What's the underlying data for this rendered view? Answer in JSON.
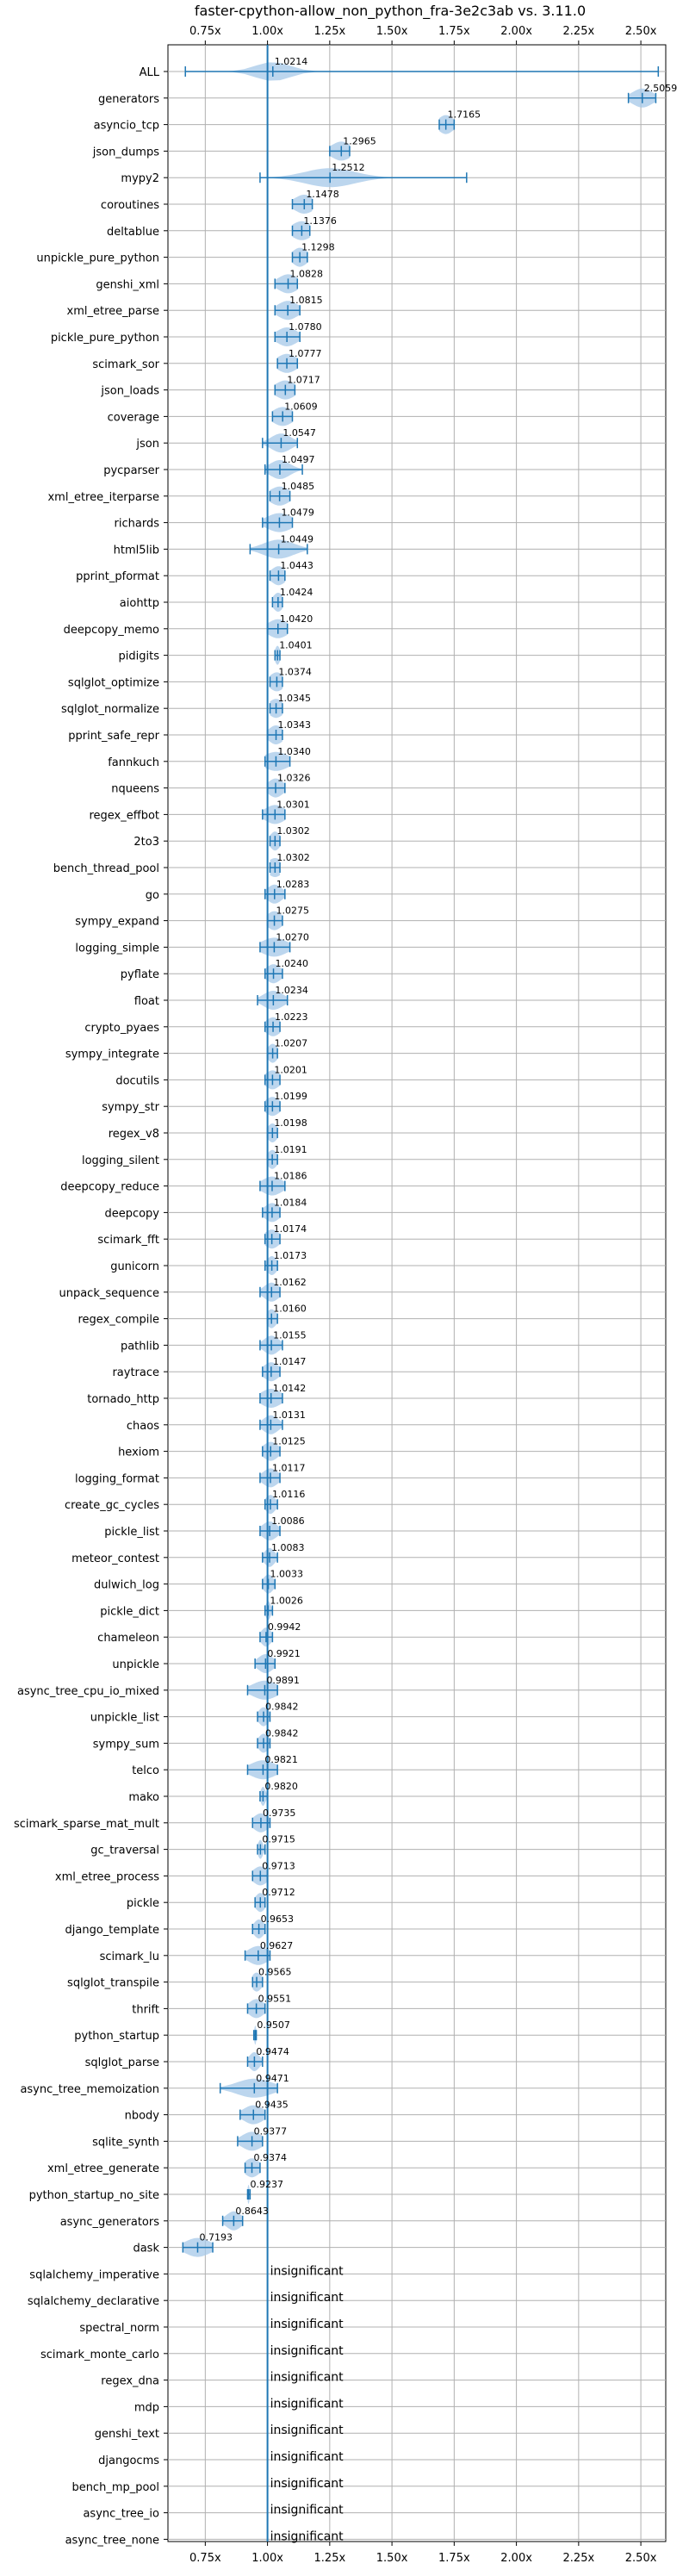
{
  "chart_data": {
    "type": "violin",
    "title": "faster-cpython-allow_non_python_fra-3e2c3ab vs. 3.11.0",
    "xlim": [
      0.6,
      2.6
    ],
    "xticks": [
      0.75,
      1.0,
      1.25,
      1.5,
      1.75,
      2.0,
      2.25,
      2.5
    ],
    "xtick_labels": [
      "0.75x",
      "1.00x",
      "1.25x",
      "1.50x",
      "1.75x",
      "2.00x",
      "2.25x",
      "2.50x"
    ],
    "reference_line": 1.0,
    "grid": true,
    "colors": {
      "violin": "#a6c8e8",
      "line": "#1f77b4",
      "grid": "#b0b0b0"
    },
    "insignificant_text": "insignificant",
    "benchmarks": [
      {
        "name": "ALL",
        "value": 1.0214,
        "label": "1.0214",
        "min": 0.67,
        "max": 2.57,
        "spread": 0.07
      },
      {
        "name": "generators",
        "value": 2.5059,
        "label": "2.5059",
        "min": 2.45,
        "max": 2.56,
        "spread": 0.04
      },
      {
        "name": "asyncio_tcp",
        "value": 1.7165,
        "label": "1.7165",
        "min": 1.69,
        "max": 1.75,
        "spread": 0.03
      },
      {
        "name": "json_dumps",
        "value": 1.2965,
        "label": "1.2965",
        "min": 1.25,
        "max": 1.33,
        "spread": 0.04
      },
      {
        "name": "mypy2",
        "value": 1.2512,
        "label": "1.2512",
        "min": 0.97,
        "max": 1.8,
        "spread": 0.1
      },
      {
        "name": "coroutines",
        "value": 1.1478,
        "label": "1.1478",
        "min": 1.1,
        "max": 1.18,
        "spread": 0.04
      },
      {
        "name": "deltablue",
        "value": 1.1376,
        "label": "1.1376",
        "min": 1.1,
        "max": 1.17,
        "spread": 0.04
      },
      {
        "name": "unpickle_pure_python",
        "value": 1.1298,
        "label": "1.1298",
        "min": 1.1,
        "max": 1.16,
        "spread": 0.03
      },
      {
        "name": "genshi_xml",
        "value": 1.0828,
        "label": "1.0828",
        "min": 1.03,
        "max": 1.12,
        "spread": 0.04
      },
      {
        "name": "xml_etree_parse",
        "value": 1.0815,
        "label": "1.0815",
        "min": 1.03,
        "max": 1.13,
        "spread": 0.04
      },
      {
        "name": "pickle_pure_python",
        "value": 1.078,
        "label": "1.0780",
        "min": 1.03,
        "max": 1.13,
        "spread": 0.04
      },
      {
        "name": "scimark_sor",
        "value": 1.0777,
        "label": "1.0777",
        "min": 1.04,
        "max": 1.12,
        "spread": 0.04
      },
      {
        "name": "json_loads",
        "value": 1.0717,
        "label": "1.0717",
        "min": 1.03,
        "max": 1.11,
        "spread": 0.04
      },
      {
        "name": "coverage",
        "value": 1.0609,
        "label": "1.0609",
        "min": 1.02,
        "max": 1.1,
        "spread": 0.04
      },
      {
        "name": "json",
        "value": 1.0547,
        "label": "1.0547",
        "min": 0.98,
        "max": 1.12,
        "spread": 0.04
      },
      {
        "name": "pycparser",
        "value": 1.0497,
        "label": "1.0497",
        "min": 0.99,
        "max": 1.14,
        "spread": 0.04
      },
      {
        "name": "xml_etree_iterparse",
        "value": 1.0485,
        "label": "1.0485",
        "min": 1.01,
        "max": 1.09,
        "spread": 0.04
      },
      {
        "name": "richards",
        "value": 1.0479,
        "label": "1.0479",
        "min": 0.98,
        "max": 1.1,
        "spread": 0.05
      },
      {
        "name": "html5lib",
        "value": 1.0449,
        "label": "1.0449",
        "min": 0.93,
        "max": 1.16,
        "spread": 0.06
      },
      {
        "name": "pprint_pformat",
        "value": 1.0443,
        "label": "1.0443",
        "min": 1.01,
        "max": 1.07,
        "spread": 0.03
      },
      {
        "name": "aiohttp",
        "value": 1.0424,
        "label": "1.0424",
        "min": 1.02,
        "max": 1.06,
        "spread": 0.02
      },
      {
        "name": "deepcopy_memo",
        "value": 1.042,
        "label": "1.0420",
        "min": 1.0,
        "max": 1.08,
        "spread": 0.04
      },
      {
        "name": "pidigits",
        "value": 1.0401,
        "label": "1.0401",
        "min": 1.03,
        "max": 1.05,
        "spread": 0.01
      },
      {
        "name": "sqlglot_optimize",
        "value": 1.0374,
        "label": "1.0374",
        "min": 1.01,
        "max": 1.06,
        "spread": 0.03
      },
      {
        "name": "sqlglot_normalize",
        "value": 1.0345,
        "label": "1.0345",
        "min": 1.01,
        "max": 1.06,
        "spread": 0.03
      },
      {
        "name": "pprint_safe_repr",
        "value": 1.0343,
        "label": "1.0343",
        "min": 1.0,
        "max": 1.06,
        "spread": 0.03
      },
      {
        "name": "fannkuch",
        "value": 1.034,
        "label": "1.0340",
        "min": 0.99,
        "max": 1.09,
        "spread": 0.05
      },
      {
        "name": "nqueens",
        "value": 1.0326,
        "label": "1.0326",
        "min": 1.0,
        "max": 1.07,
        "spread": 0.03
      },
      {
        "name": "regex_effbot",
        "value": 1.0301,
        "label": "1.0301",
        "min": 0.98,
        "max": 1.07,
        "spread": 0.04
      },
      {
        "name": "2to3",
        "value": 1.0302,
        "label": "1.0302",
        "min": 1.01,
        "max": 1.05,
        "spread": 0.02
      },
      {
        "name": "bench_thread_pool",
        "value": 1.0302,
        "label": "1.0302",
        "min": 1.01,
        "max": 1.05,
        "spread": 0.03
      },
      {
        "name": "go",
        "value": 1.0283,
        "label": "1.0283",
        "min": 0.99,
        "max": 1.07,
        "spread": 0.03
      },
      {
        "name": "sympy_expand",
        "value": 1.0275,
        "label": "1.0275",
        "min": 1.0,
        "max": 1.06,
        "spread": 0.03
      },
      {
        "name": "logging_simple",
        "value": 1.027,
        "label": "1.0270",
        "min": 0.97,
        "max": 1.09,
        "spread": 0.05
      },
      {
        "name": "pyflate",
        "value": 1.024,
        "label": "1.0240",
        "min": 0.99,
        "max": 1.06,
        "spread": 0.03
      },
      {
        "name": "float",
        "value": 1.0234,
        "label": "1.0234",
        "min": 0.96,
        "max": 1.08,
        "spread": 0.04
      },
      {
        "name": "crypto_pyaes",
        "value": 1.0223,
        "label": "1.0223",
        "min": 0.99,
        "max": 1.05,
        "spread": 0.03
      },
      {
        "name": "sympy_integrate",
        "value": 1.0207,
        "label": "1.0207",
        "min": 1.0,
        "max": 1.04,
        "spread": 0.02
      },
      {
        "name": "docutils",
        "value": 1.0201,
        "label": "1.0201",
        "min": 0.99,
        "max": 1.05,
        "spread": 0.03
      },
      {
        "name": "sympy_str",
        "value": 1.0199,
        "label": "1.0199",
        "min": 0.99,
        "max": 1.05,
        "spread": 0.03
      },
      {
        "name": "regex_v8",
        "value": 1.0198,
        "label": "1.0198",
        "min": 1.0,
        "max": 1.04,
        "spread": 0.02
      },
      {
        "name": "logging_silent",
        "value": 1.0191,
        "label": "1.0191",
        "min": 1.0,
        "max": 1.04,
        "spread": 0.02
      },
      {
        "name": "deepcopy_reduce",
        "value": 1.0186,
        "label": "1.0186",
        "min": 0.97,
        "max": 1.07,
        "spread": 0.04
      },
      {
        "name": "deepcopy",
        "value": 1.0184,
        "label": "1.0184",
        "min": 0.98,
        "max": 1.05,
        "spread": 0.03
      },
      {
        "name": "scimark_fft",
        "value": 1.0174,
        "label": "1.0174",
        "min": 0.99,
        "max": 1.05,
        "spread": 0.03
      },
      {
        "name": "gunicorn",
        "value": 1.0173,
        "label": "1.0173",
        "min": 0.99,
        "max": 1.04,
        "spread": 0.02
      },
      {
        "name": "unpack_sequence",
        "value": 1.0162,
        "label": "1.0162",
        "min": 0.97,
        "max": 1.05,
        "spread": 0.03
      },
      {
        "name": "regex_compile",
        "value": 1.016,
        "label": "1.0160",
        "min": 1.0,
        "max": 1.04,
        "spread": 0.02
      },
      {
        "name": "pathlib",
        "value": 1.0155,
        "label": "1.0155",
        "min": 0.97,
        "max": 1.06,
        "spread": 0.03
      },
      {
        "name": "raytrace",
        "value": 1.0147,
        "label": "1.0147",
        "min": 0.98,
        "max": 1.05,
        "spread": 0.03
      },
      {
        "name": "tornado_http",
        "value": 1.0142,
        "label": "1.0142",
        "min": 0.97,
        "max": 1.06,
        "spread": 0.04
      },
      {
        "name": "chaos",
        "value": 1.0131,
        "label": "1.0131",
        "min": 0.97,
        "max": 1.06,
        "spread": 0.03
      },
      {
        "name": "hexiom",
        "value": 1.0125,
        "label": "1.0125",
        "min": 0.98,
        "max": 1.05,
        "spread": 0.03
      },
      {
        "name": "logging_format",
        "value": 1.0117,
        "label": "1.0117",
        "min": 0.97,
        "max": 1.05,
        "spread": 0.03
      },
      {
        "name": "create_gc_cycles",
        "value": 1.0116,
        "label": "1.0116",
        "min": 0.99,
        "max": 1.04,
        "spread": 0.02
      },
      {
        "name": "pickle_list",
        "value": 1.0086,
        "label": "1.0086",
        "min": 0.97,
        "max": 1.05,
        "spread": 0.03
      },
      {
        "name": "meteor_contest",
        "value": 1.0083,
        "label": "1.0083",
        "min": 0.98,
        "max": 1.04,
        "spread": 0.02
      },
      {
        "name": "dulwich_log",
        "value": 1.0033,
        "label": "1.0033",
        "min": 0.98,
        "max": 1.03,
        "spread": 0.02
      },
      {
        "name": "pickle_dict",
        "value": 1.0026,
        "label": "1.0026",
        "min": 0.99,
        "max": 1.02,
        "spread": 0.01
      },
      {
        "name": "chameleon",
        "value": 0.9942,
        "label": "0.9942",
        "min": 0.97,
        "max": 1.02,
        "spread": 0.02
      },
      {
        "name": "unpickle",
        "value": 0.9921,
        "label": "0.9921",
        "min": 0.95,
        "max": 1.03,
        "spread": 0.03
      },
      {
        "name": "async_tree_cpu_io_mixed",
        "value": 0.9891,
        "label": "0.9891",
        "min": 0.92,
        "max": 1.04,
        "spread": 0.05
      },
      {
        "name": "unpickle_list",
        "value": 0.9842,
        "label": "0.9842",
        "min": 0.96,
        "max": 1.01,
        "spread": 0.02
      },
      {
        "name": "sympy_sum",
        "value": 0.9842,
        "label": "0.9842",
        "min": 0.96,
        "max": 1.01,
        "spread": 0.02
      },
      {
        "name": "telco",
        "value": 0.9821,
        "label": "0.9821",
        "min": 0.92,
        "max": 1.04,
        "spread": 0.05
      },
      {
        "name": "mako",
        "value": 0.982,
        "label": "0.9820",
        "min": 0.97,
        "max": 1.0,
        "spread": 0.01
      },
      {
        "name": "scimark_sparse_mat_mult",
        "value": 0.9735,
        "label": "0.9735",
        "min": 0.94,
        "max": 1.01,
        "spread": 0.03
      },
      {
        "name": "gc_traversal",
        "value": 0.9715,
        "label": "0.9715",
        "min": 0.96,
        "max": 0.99,
        "spread": 0.01
      },
      {
        "name": "xml_etree_process",
        "value": 0.9713,
        "label": "0.9713",
        "min": 0.94,
        "max": 1.0,
        "spread": 0.03
      },
      {
        "name": "pickle",
        "value": 0.9712,
        "label": "0.9712",
        "min": 0.95,
        "max": 0.99,
        "spread": 0.02
      },
      {
        "name": "django_template",
        "value": 0.9653,
        "label": "0.9653",
        "min": 0.94,
        "max": 0.99,
        "spread": 0.02
      },
      {
        "name": "scimark_lu",
        "value": 0.9627,
        "label": "0.9627",
        "min": 0.91,
        "max": 1.01,
        "spread": 0.04
      },
      {
        "name": "sqlglot_transpile",
        "value": 0.9565,
        "label": "0.9565",
        "min": 0.94,
        "max": 0.98,
        "spread": 0.02
      },
      {
        "name": "thrift",
        "value": 0.9551,
        "label": "0.9551",
        "min": 0.92,
        "max": 0.99,
        "spread": 0.03
      },
      {
        "name": "python_startup",
        "value": 0.9507,
        "label": "0.9507",
        "min": 0.945,
        "max": 0.955,
        "spread": 0.004
      },
      {
        "name": "sqlglot_parse",
        "value": 0.9474,
        "label": "0.9474",
        "min": 0.92,
        "max": 0.98,
        "spread": 0.02
      },
      {
        "name": "async_tree_memoization",
        "value": 0.9471,
        "label": "0.9471",
        "min": 0.81,
        "max": 1.04,
        "spread": 0.07
      },
      {
        "name": "nbody",
        "value": 0.9435,
        "label": "0.9435",
        "min": 0.89,
        "max": 0.99,
        "spread": 0.04
      },
      {
        "name": "sqlite_synth",
        "value": 0.9377,
        "label": "0.9377",
        "min": 0.88,
        "max": 0.98,
        "spread": 0.04
      },
      {
        "name": "xml_etree_generate",
        "value": 0.9374,
        "label": "0.9374",
        "min": 0.91,
        "max": 0.97,
        "spread": 0.03
      },
      {
        "name": "python_startup_no_site",
        "value": 0.9237,
        "label": "0.9237",
        "min": 0.92,
        "max": 0.93,
        "spread": 0.004
      },
      {
        "name": "async_generators",
        "value": 0.8643,
        "label": "0.8643",
        "min": 0.82,
        "max": 0.9,
        "spread": 0.03
      },
      {
        "name": "dask",
        "value": 0.7193,
        "label": "0.7193",
        "min": 0.66,
        "max": 0.78,
        "spread": 0.05
      },
      {
        "name": "sqlalchemy_imperative",
        "value": 1.0,
        "label": "",
        "insignificant": true
      },
      {
        "name": "sqlalchemy_declarative",
        "value": 1.0,
        "label": "",
        "insignificant": true
      },
      {
        "name": "spectral_norm",
        "value": 1.0,
        "label": "",
        "insignificant": true
      },
      {
        "name": "scimark_monte_carlo",
        "value": 1.0,
        "label": "",
        "insignificant": true
      },
      {
        "name": "regex_dna",
        "value": 1.0,
        "label": "",
        "insignificant": true
      },
      {
        "name": "mdp",
        "value": 1.0,
        "label": "",
        "insignificant": true
      },
      {
        "name": "genshi_text",
        "value": 1.0,
        "label": "",
        "insignificant": true
      },
      {
        "name": "djangocms",
        "value": 1.0,
        "label": "",
        "insignificant": true
      },
      {
        "name": "bench_mp_pool",
        "value": 1.0,
        "label": "",
        "insignificant": true
      },
      {
        "name": "async_tree_io",
        "value": 1.0,
        "label": "",
        "insignificant": true
      },
      {
        "name": "async_tree_none",
        "value": 1.0,
        "label": "",
        "insignificant": true
      }
    ]
  }
}
